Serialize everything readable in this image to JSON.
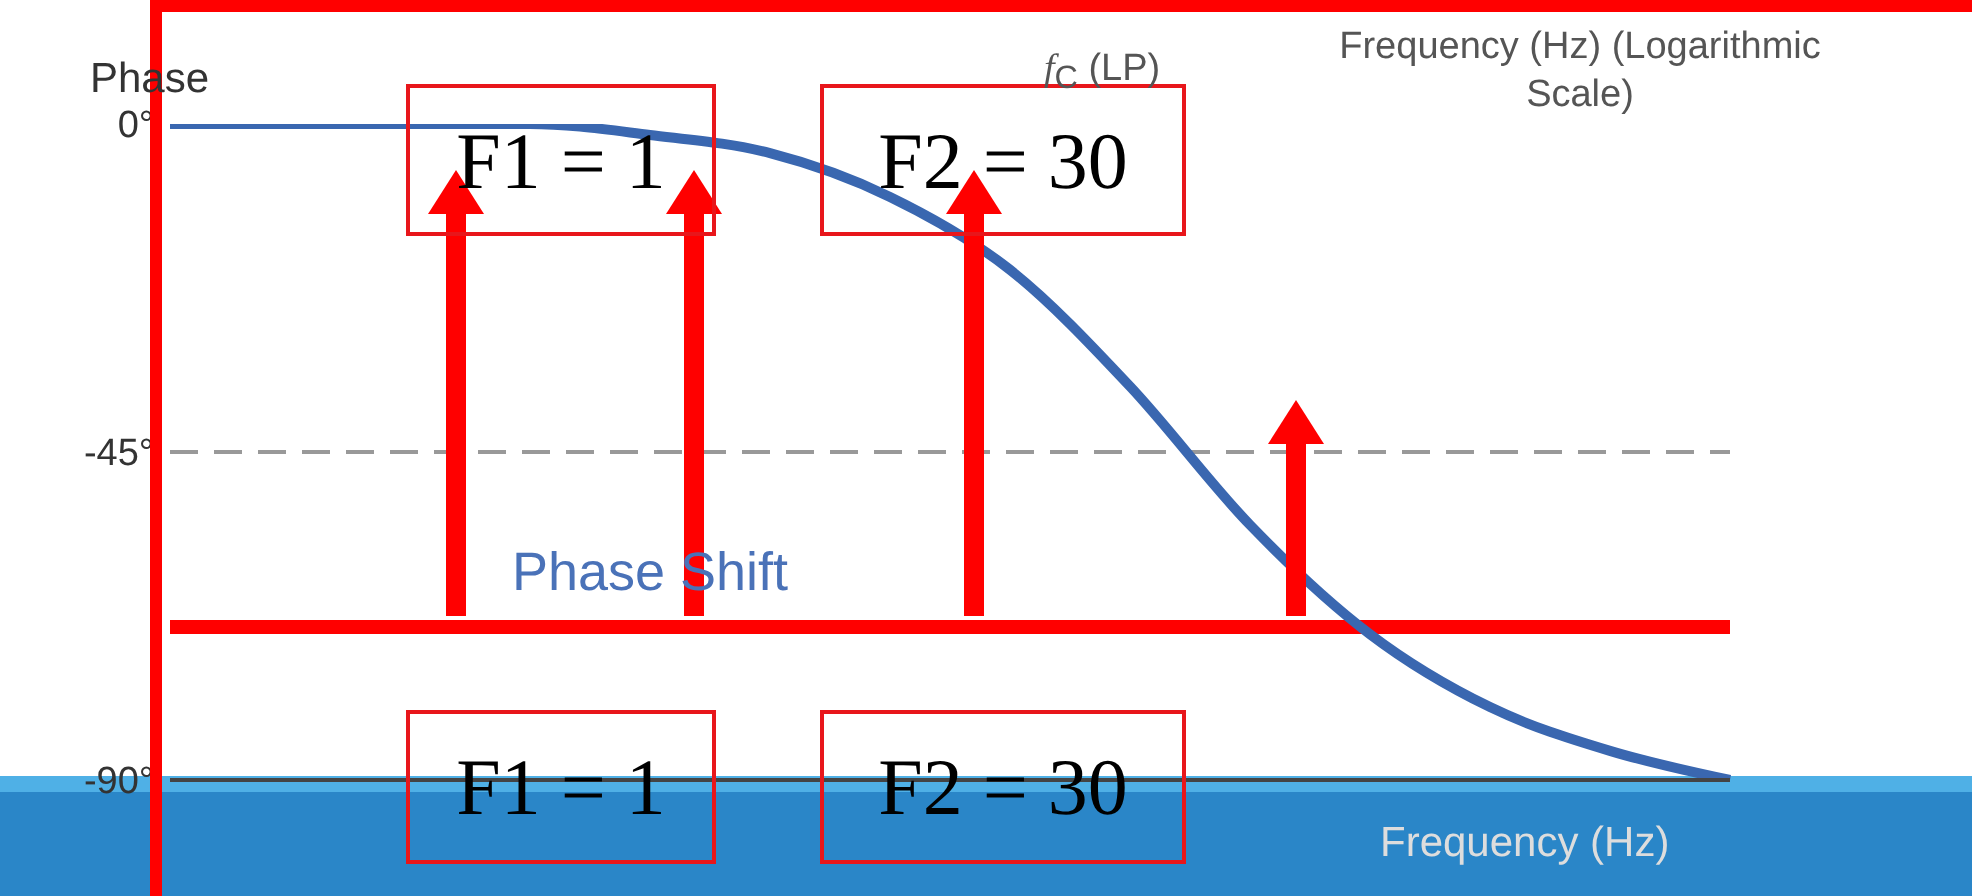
{
  "chart_data": {
    "type": "line",
    "ylabel": "Phase",
    "xlabel": "Frequency (Hz)",
    "categories": [
      null,
      null,
      null,
      null,
      null,
      null,
      null,
      null,
      null,
      null,
      null,
      null,
      null,
      null
    ],
    "series": [
      {
        "color": "#3a67b0",
        "values": [
          0,
          0,
          0,
          0,
          -1.5,
          -4,
          -10,
          -20,
          -36,
          -55,
          -70,
          -80,
          -86,
          -90
        ]
      }
    ],
    "ylim": [
      -90,
      0
    ],
    "yticks": [
      {
        "value": 0,
        "label": "0°"
      },
      {
        "value": -45,
        "label": "-45°"
      },
      {
        "value": -90,
        "label": "-90°"
      }
    ],
    "tick_labels": "y",
    "marker": "none",
    "line_style": "solid",
    "ref_lines": [
      {
        "axis": "y",
        "value": -45,
        "label": null,
        "color": "#999999",
        "line_style": "dashed"
      },
      {
        "axis": "y",
        "value": -69,
        "label": null,
        "color": "#ff0000",
        "line_style": "solid"
      }
    ],
    "annotations": [
      "Frequency (Hz) (Logarithmic Scale)",
      "Phase Shift",
      "F1 = 1",
      "F2 = 30",
      "F1 = 1",
      "F2 = 30",
      "f$_{C}$ (LP)"
    ]
  }
}
